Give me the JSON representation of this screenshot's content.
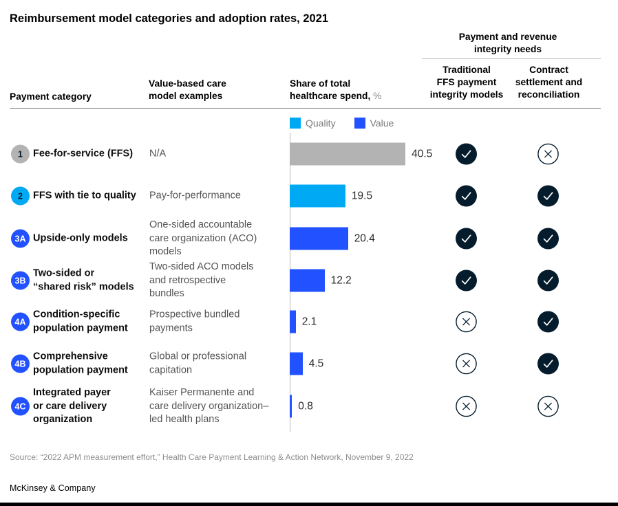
{
  "title": "Reimbursement model categories and adoption rates, 2021",
  "header": {
    "payment_category": "Payment category",
    "examples": "Value-based care\nmodel examples",
    "spend_label": "Share of total\nhealthcare spend, ",
    "spend_unit": "%",
    "group": "Payment and revenue\nintegrity needs",
    "col1": "Traditional\nFFS payment\nintegrity models",
    "col2": "Contract\nsettlement and\nreconciliation"
  },
  "legend": [
    {
      "label": "Quality",
      "color": "#00A9F4"
    },
    {
      "label": "Value",
      "color": "#2251FF"
    }
  ],
  "colors": {
    "cyan": "#00A9F4",
    "blue": "#2251FF",
    "gray": "#B3B3B3",
    "dark_navy": "#051C2C"
  },
  "chart_data": {
    "type": "bar",
    "orientation": "horizontal",
    "title": "Reimbursement model categories and adoption rates, 2021",
    "xlabel": "Share of total healthcare spend, %",
    "xlim": [
      0,
      42
    ],
    "grid": false,
    "legend_position": "top",
    "legend": [
      {
        "label": "Quality",
        "color": "#00A9F4"
      },
      {
        "label": "Value",
        "color": "#2251FF"
      }
    ],
    "categories": [
      "Fee-for-service (FFS)",
      "FFS with tie to quality",
      "Upside-only models",
      "Two-sided or “shared risk” models",
      "Condition-specific population payment",
      "Comprehensive population payment",
      "Integrated payer or care delivery organization"
    ],
    "values": [
      40.5,
      19.5,
      20.4,
      12.2,
      2.1,
      4.5,
      0.8
    ],
    "bar_colors": [
      "#B3B3B3",
      "#00A9F4",
      "#2251FF",
      "#2251FF",
      "#2251FF",
      "#2251FF",
      "#2251FF"
    ]
  },
  "rows": [
    {
      "badge": {
        "text": "1",
        "bg": "#B3B3B3",
        "fg": "#051C2C"
      },
      "label": "Fee-for-service (FFS)",
      "example": "N/A",
      "value": "40.5",
      "bar_color": "#B3B3B3",
      "traditional": "check",
      "contract": "x"
    },
    {
      "badge": {
        "text": "2",
        "bg": "#00A9F4",
        "fg": "#051C2C"
      },
      "label": "FFS with tie to quality",
      "example": "Pay-for-performance",
      "value": "19.5",
      "bar_color": "#00A9F4",
      "traditional": "check",
      "contract": "check"
    },
    {
      "badge": {
        "text": "3A",
        "bg": "#2251FF",
        "fg": "#FFFFFF"
      },
      "label": "Upside-only models",
      "example": "One-sided accountable\ncare organization (ACO)\nmodels",
      "value": "20.4",
      "bar_color": "#2251FF",
      "traditional": "check",
      "contract": "check"
    },
    {
      "badge": {
        "text": "3B",
        "bg": "#2251FF",
        "fg": "#FFFFFF"
      },
      "label": "Two-sided or\n“shared risk” models",
      "example": "Two-sided ACO models\nand retrospective\nbundles",
      "value": "12.2",
      "bar_color": "#2251FF",
      "traditional": "check",
      "contract": "check"
    },
    {
      "badge": {
        "text": "4A",
        "bg": "#2251FF",
        "fg": "#FFFFFF"
      },
      "label": "Condition-specific\npopulation payment",
      "example": "Prospective bundled\npayments",
      "value": "2.1",
      "bar_color": "#2251FF",
      "traditional": "x",
      "contract": "check"
    },
    {
      "badge": {
        "text": "4B",
        "bg": "#2251FF",
        "fg": "#FFFFFF"
      },
      "label": "Comprehensive\npopulation payment",
      "example": "Global or professional\ncapitation",
      "value": "4.5",
      "bar_color": "#2251FF",
      "traditional": "x",
      "contract": "check"
    },
    {
      "badge": {
        "text": "4C",
        "bg": "#2251FF",
        "fg": "#FFFFFF"
      },
      "label": "Integrated payer\nor care delivery\norganization",
      "example": "Kaiser Permanente and\ncare delivery organization–\nled health plans",
      "value": "0.8",
      "bar_color": "#2251FF",
      "traditional": "x",
      "contract": "x"
    }
  ],
  "footer": {
    "source": "Source: “2022 APM measurement effort,” Health Care Payment Learning & Action Network, November 9, 2022",
    "brand": "McKinsey & Company"
  }
}
